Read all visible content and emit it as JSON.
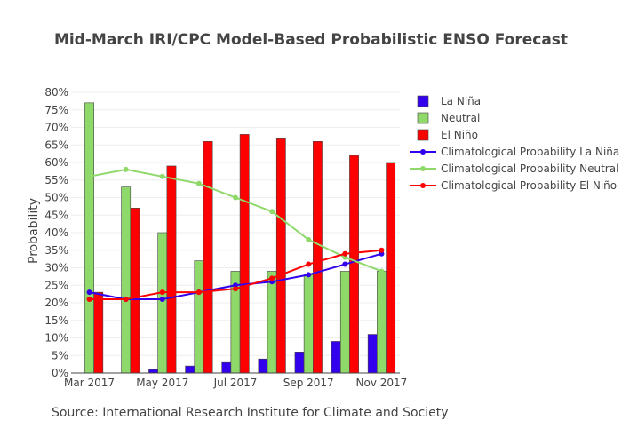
{
  "chart_data": {
    "type": "bar",
    "title": "Mid-March IRI/CPC Model-Based Probabilistic ENSO Forecast",
    "xlabel": "",
    "ylabel": "Probability",
    "ylim": [
      0,
      80
    ],
    "y_ticks": [
      "0%",
      "5%",
      "10%",
      "15%",
      "20%",
      "25%",
      "30%",
      "35%",
      "40%",
      "45%",
      "50%",
      "55%",
      "60%",
      "65%",
      "70%",
      "75%",
      "80%"
    ],
    "x_tick_labels": [
      "Mar 2017",
      "May 2017",
      "Jul 2017",
      "Sep 2017",
      "Nov 2017"
    ],
    "legend_position": "right",
    "grid": true,
    "categories": [
      "2017-03",
      "2017-04",
      "2017-05",
      "2017-06",
      "2017-07",
      "2017-08",
      "2017-09",
      "2017-10",
      "2017-11"
    ],
    "series": [
      {
        "name": "La Niña",
        "kind": "bar",
        "color": "#3300ee",
        "values": [
          0,
          0,
          1,
          2,
          3,
          4,
          6,
          9,
          11
        ]
      },
      {
        "name": "Neutral",
        "kind": "bar",
        "color": "#8fd96b",
        "values": [
          77,
          53,
          40,
          32,
          29,
          29,
          28,
          29,
          29
        ]
      },
      {
        "name": "El Niño",
        "kind": "bar",
        "color": "#ff0000",
        "values": [
          23,
          47,
          59,
          66,
          68,
          67,
          66,
          62,
          60
        ]
      },
      {
        "name": "Climatological Probability La Niña",
        "kind": "line",
        "color": "#3300ee",
        "values": [
          23,
          21,
          21,
          23,
          25,
          26,
          28,
          31,
          34
        ]
      },
      {
        "name": "Climatological Probability Neutral",
        "kind": "line",
        "color": "#8fd96b",
        "values": [
          56,
          58,
          56,
          54,
          50,
          46,
          38,
          33,
          29
        ]
      },
      {
        "name": "Climatological Probability El Niño",
        "kind": "line",
        "color": "#ff0000",
        "values": [
          21,
          21,
          23,
          23,
          24,
          27,
          31,
          34,
          35
        ]
      }
    ]
  },
  "source": "Source: International Research Institute for Climate and Society"
}
